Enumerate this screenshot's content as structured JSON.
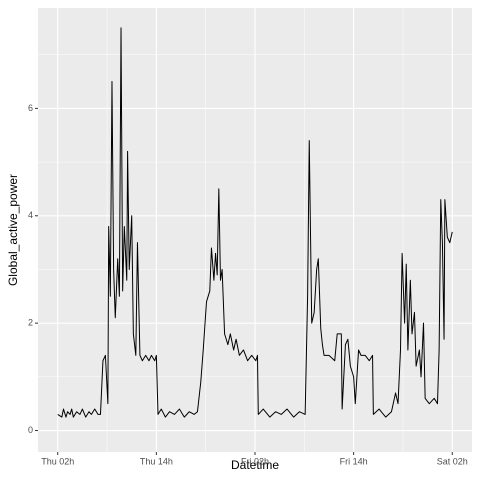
{
  "chart_data": {
    "type": "line",
    "xlabel": "Datetime",
    "ylabel": "Global_active_power",
    "color": "#000000",
    "grid": true,
    "xlim": [
      -0.4,
      52.4
    ],
    "ylim": [
      -0.4,
      7.87
    ],
    "xticks": [
      {
        "value": 2,
        "label": "Thu 02h"
      },
      {
        "value": 14,
        "label": "Thu 14h"
      },
      {
        "value": 26,
        "label": "Fri 02h"
      },
      {
        "value": 38,
        "label": "Fri 14h"
      },
      {
        "value": 50,
        "label": "Sat 02h"
      }
    ],
    "x_minor_ticks": [
      8,
      20,
      32,
      44
    ],
    "yticks": [
      0,
      2,
      4,
      6
    ],
    "y_minor_ticks": [
      1,
      3,
      5,
      7
    ],
    "x": [
      2.0,
      2.5,
      2.7,
      3.0,
      3.2,
      3.5,
      3.7,
      3.9,
      4.3,
      4.7,
      5.0,
      5.4,
      5.8,
      6.1,
      6.5,
      6.9,
      7.2,
      7.5,
      7.8,
      8.1,
      8.2,
      8.4,
      8.6,
      8.8,
      9.0,
      9.3,
      9.5,
      9.7,
      9.9,
      10.1,
      10.4,
      10.5,
      10.7,
      11.0,
      11.2,
      11.5,
      11.7,
      12.0,
      12.3,
      12.7,
      13.1,
      13.4,
      13.8,
      14.0,
      14.2,
      14.6,
      15.1,
      15.6,
      16.2,
      16.8,
      17.4,
      18.0,
      18.6,
      19.0,
      19.4,
      19.7,
      20.1,
      20.5,
      20.7,
      21.0,
      21.2,
      21.4,
      21.6,
      21.8,
      22.0,
      22.3,
      22.7,
      23.0,
      23.4,
      23.7,
      24.1,
      24.6,
      25.1,
      25.6,
      26.1,
      26.3,
      26.4,
      27.0,
      27.8,
      28.5,
      29.2,
      29.9,
      30.7,
      31.4,
      32.1,
      32.4,
      32.6,
      32.9,
      33.2,
      33.5,
      33.7,
      34.0,
      34.2,
      34.4,
      35.0,
      35.7,
      36.0,
      36.5,
      36.6,
      37.0,
      37.3,
      37.6,
      38.0,
      38.2,
      38.6,
      38.9,
      39.4,
      39.9,
      40.3,
      40.4,
      41.1,
      41.9,
      42.6,
      43.1,
      43.4,
      43.7,
      43.9,
      44.2,
      44.4,
      44.6,
      44.9,
      45.1,
      45.4,
      45.6,
      46.0,
      46.2,
      46.5,
      46.7,
      47.2,
      47.8,
      48.2,
      48.4,
      48.6,
      48.8,
      49.0,
      49.1,
      49.4,
      49.7,
      50.0
    ],
    "values": [
      0.3,
      0.25,
      0.4,
      0.25,
      0.35,
      0.3,
      0.4,
      0.25,
      0.35,
      0.3,
      0.4,
      0.25,
      0.35,
      0.3,
      0.4,
      0.3,
      0.3,
      1.3,
      1.4,
      0.5,
      3.8,
      2.5,
      6.5,
      3.0,
      2.1,
      3.2,
      2.5,
      7.5,
      2.6,
      3.8,
      2.8,
      5.2,
      3.0,
      4.0,
      1.8,
      1.4,
      3.5,
      1.4,
      1.3,
      1.4,
      1.3,
      1.4,
      1.3,
      1.4,
      0.3,
      0.4,
      0.25,
      0.35,
      0.3,
      0.4,
      0.25,
      0.35,
      0.3,
      0.35,
      0.9,
      1.5,
      2.4,
      2.6,
      3.4,
      2.8,
      3.3,
      2.9,
      4.5,
      2.8,
      3.0,
      1.8,
      1.6,
      1.8,
      1.5,
      1.7,
      1.4,
      1.5,
      1.3,
      1.4,
      1.3,
      1.4,
      0.3,
      0.4,
      0.25,
      0.35,
      0.3,
      0.4,
      0.25,
      0.35,
      0.3,
      2.5,
      5.4,
      2.0,
      2.2,
      3.0,
      3.2,
      1.9,
      1.6,
      1.4,
      1.4,
      1.3,
      1.8,
      1.8,
      0.4,
      1.6,
      1.7,
      1.2,
      1.0,
      0.5,
      1.5,
      1.4,
      1.4,
      1.3,
      1.4,
      0.3,
      0.4,
      0.25,
      0.35,
      0.7,
      0.5,
      1.5,
      3.3,
      2.0,
      3.1,
      1.5,
      2.8,
      1.8,
      2.2,
      1.2,
      1.5,
      1.0,
      2.0,
      0.6,
      0.5,
      0.6,
      0.5,
      1.5,
      4.3,
      3.5,
      1.7,
      4.3,
      3.6,
      3.5,
      3.7
    ]
  }
}
